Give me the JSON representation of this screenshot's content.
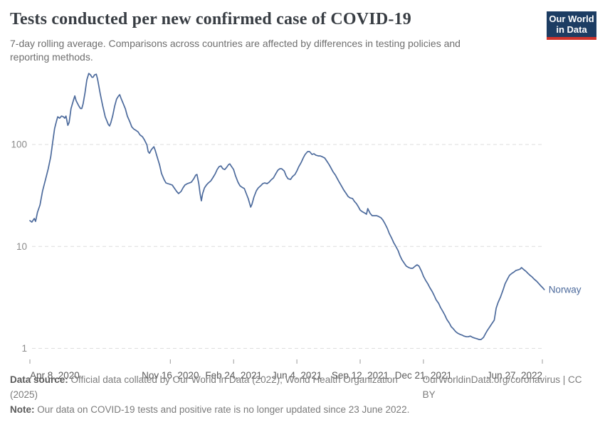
{
  "header": {
    "title": "Tests conducted per new confirmed case of COVID-19",
    "subtitle": "7-day rolling average. Comparisons across countries are affected by differences in testing policies and reporting methods.",
    "logo": {
      "line1": "Our World",
      "line2": "in Data"
    }
  },
  "footer": {
    "source_label": "Data source:",
    "source_text": " Official data collated by Our World in Data (2022); World Health Organization (2025)",
    "link_text": "OurWorldinData.org/coronavirus | CC BY",
    "note_label": "Note:",
    "note_text": " Our data on COVID-19 tests and positive rate is no longer updated since 23 June 2022."
  },
  "colors": {
    "line": "#4C6A9C",
    "series_label": "#4C6A9C",
    "grid": "#dedede",
    "y_tick_text": "#8b8b8b",
    "x_tick_text": "#5b5b5b",
    "tick_mark": "#999999",
    "logo_bg": "#1d3d63",
    "logo_red": "#d0342c"
  },
  "chart_data": {
    "type": "line",
    "title": "Tests conducted per new confirmed case of COVID-19",
    "xlabel": "",
    "ylabel": "",
    "log_scale_y": true,
    "ylim": [
      1,
      500
    ],
    "grid": "dashed-horizontal",
    "legend_position": "end-of-line-label",
    "start_date": "2020-04-08",
    "y_ticks": [
      {
        "value": 1,
        "label": "1"
      },
      {
        "value": 10,
        "label": "10"
      },
      {
        "value": 100,
        "label": "100"
      }
    ],
    "x_ticks": [
      {
        "day": 0,
        "label": "Apr 8, 2020",
        "align": "start"
      },
      {
        "day": 222,
        "label": "Nov 16, 2020",
        "align": "middle"
      },
      {
        "day": 322,
        "label": "Feb 24, 2021",
        "align": "middle"
      },
      {
        "day": 422,
        "label": "Jun 4, 2021",
        "align": "middle"
      },
      {
        "day": 522,
        "label": "Sep 12, 2021",
        "align": "middle"
      },
      {
        "day": 622,
        "label": "Dec 21, 2021",
        "align": "middle"
      },
      {
        "day": 810,
        "label": "Jun 27, 2022",
        "align": "end"
      }
    ],
    "series": [
      {
        "name": "Norway",
        "color": "#4C6A9C",
        "points_format": "[days_since_start_date, tests_per_confirmed_case]",
        "points": [
          [
            0,
            17.9
          ],
          [
            3,
            17.3
          ],
          [
            7,
            18.8
          ],
          [
            9,
            17.6
          ],
          [
            12,
            21.7
          ],
          [
            16,
            25.5
          ],
          [
            20,
            35
          ],
          [
            25,
            46
          ],
          [
            29,
            58
          ],
          [
            33,
            76
          ],
          [
            36,
            105
          ],
          [
            39,
            143
          ],
          [
            42,
            169
          ],
          [
            44,
            187
          ],
          [
            47,
            181
          ],
          [
            50,
            190
          ],
          [
            53,
            187
          ],
          [
            55,
            181
          ],
          [
            57,
            190
          ],
          [
            60,
            154
          ],
          [
            62,
            164
          ],
          [
            65,
            225
          ],
          [
            69,
            273
          ],
          [
            71,
            300
          ],
          [
            73,
            269
          ],
          [
            77,
            241
          ],
          [
            80,
            225
          ],
          [
            82,
            225
          ],
          [
            84,
            249
          ],
          [
            87,
            317
          ],
          [
            90,
            430
          ],
          [
            93,
            497
          ],
          [
            96,
            481
          ],
          [
            98,
            457
          ],
          [
            100,
            457
          ],
          [
            102,
            481
          ],
          [
            105,
            489
          ],
          [
            107,
            437
          ],
          [
            109,
            373
          ],
          [
            111,
            317
          ],
          [
            115,
            241
          ],
          [
            117,
            213
          ],
          [
            119,
            187
          ],
          [
            122,
            169
          ],
          [
            124,
            157
          ],
          [
            126,
            152
          ],
          [
            128,
            164
          ],
          [
            131,
            192
          ],
          [
            134,
            238
          ],
          [
            137,
            279
          ],
          [
            140,
            298
          ],
          [
            142,
            308
          ],
          [
            144,
            284
          ],
          [
            147,
            256
          ],
          [
            151,
            223
          ],
          [
            154,
            190
          ],
          [
            158,
            167
          ],
          [
            161,
            149
          ],
          [
            164,
            142
          ],
          [
            168,
            137
          ],
          [
            171,
            133
          ],
          [
            174,
            124
          ],
          [
            178,
            119
          ],
          [
            181,
            111
          ],
          [
            185,
            99
          ],
          [
            187,
            85
          ],
          [
            189,
            82
          ],
          [
            192,
            89
          ],
          [
            196,
            95
          ],
          [
            198,
            88
          ],
          [
            201,
            76
          ],
          [
            205,
            63
          ],
          [
            208,
            52
          ],
          [
            212,
            45.5
          ],
          [
            215,
            42
          ],
          [
            218,
            41.3
          ],
          [
            222,
            40.6
          ],
          [
            225,
            40
          ],
          [
            228,
            37.5
          ],
          [
            232,
            34.6
          ],
          [
            235,
            33
          ],
          [
            239,
            34.6
          ],
          [
            242,
            37.5
          ],
          [
            245,
            40
          ],
          [
            249,
            41.3
          ],
          [
            252,
            41.9
          ],
          [
            255,
            42.6
          ],
          [
            259,
            46
          ],
          [
            262,
            50
          ],
          [
            264,
            50.8
          ],
          [
            267,
            41.3
          ],
          [
            269,
            33
          ],
          [
            271,
            28
          ],
          [
            273,
            33
          ],
          [
            276,
            37.5
          ],
          [
            279,
            40
          ],
          [
            282,
            41.9
          ],
          [
            286,
            44
          ],
          [
            289,
            47
          ],
          [
            293,
            51.6
          ],
          [
            296,
            56.8
          ],
          [
            299,
            60.6
          ],
          [
            302,
            61.6
          ],
          [
            305,
            57.8
          ],
          [
            308,
            56.8
          ],
          [
            311,
            59.6
          ],
          [
            314,
            63.5
          ],
          [
            316,
            64.5
          ],
          [
            318,
            61.6
          ],
          [
            322,
            56.8
          ],
          [
            325,
            49.2
          ],
          [
            329,
            42.6
          ],
          [
            332,
            39.4
          ],
          [
            335,
            38.1
          ],
          [
            339,
            36.9
          ],
          [
            342,
            33
          ],
          [
            345,
            29.5
          ],
          [
            349,
            24.3
          ],
          [
            351,
            25.9
          ],
          [
            354,
            30.4
          ],
          [
            358,
            35.2
          ],
          [
            361,
            37.5
          ],
          [
            365,
            39.4
          ],
          [
            368,
            41.3
          ],
          [
            371,
            41.9
          ],
          [
            375,
            41.3
          ],
          [
            378,
            42.6
          ],
          [
            381,
            44.8
          ],
          [
            385,
            47
          ],
          [
            388,
            50.8
          ],
          [
            392,
            55.9
          ],
          [
            395,
            57.8
          ],
          [
            398,
            57.8
          ],
          [
            402,
            55
          ],
          [
            405,
            49.2
          ],
          [
            408,
            46.1
          ],
          [
            412,
            45.4
          ],
          [
            415,
            48.4
          ],
          [
            419,
            50.8
          ],
          [
            422,
            55
          ],
          [
            425,
            60.6
          ],
          [
            429,
            66.9
          ],
          [
            432,
            73.7
          ],
          [
            435,
            79.8
          ],
          [
            439,
            85.1
          ],
          [
            442,
            85.1
          ],
          [
            446,
            79.8
          ],
          [
            449,
            81.1
          ],
          [
            452,
            78.5
          ],
          [
            456,
            77.2
          ],
          [
            459,
            77.2
          ],
          [
            462,
            75.9
          ],
          [
            466,
            73.7
          ],
          [
            469,
            69.1
          ],
          [
            473,
            63.5
          ],
          [
            476,
            58.6
          ],
          [
            479,
            54.1
          ],
          [
            483,
            50
          ],
          [
            486,
            46.1
          ],
          [
            489,
            42.6
          ],
          [
            493,
            38.7
          ],
          [
            496,
            35.8
          ],
          [
            500,
            33
          ],
          [
            503,
            30.9
          ],
          [
            506,
            29.9
          ],
          [
            510,
            29.5
          ],
          [
            513,
            27.6
          ],
          [
            516,
            26.3
          ],
          [
            519,
            24.6
          ],
          [
            522,
            22.7
          ],
          [
            525,
            22
          ],
          [
            529,
            21.3
          ],
          [
            532,
            20.7
          ],
          [
            534,
            23.5
          ],
          [
            538,
            21
          ],
          [
            541,
            20
          ],
          [
            545,
            20
          ],
          [
            548,
            20
          ],
          [
            551,
            19.7
          ],
          [
            555,
            19.1
          ],
          [
            558,
            18.1
          ],
          [
            561,
            16.8
          ],
          [
            565,
            15
          ],
          [
            568,
            13.4
          ],
          [
            572,
            12
          ],
          [
            575,
            10.9
          ],
          [
            578,
            10.1
          ],
          [
            582,
            9.1
          ],
          [
            585,
            8.1
          ],
          [
            588,
            7.4
          ],
          [
            592,
            6.8
          ],
          [
            595,
            6.4
          ],
          [
            599,
            6.2
          ],
          [
            602,
            6.1
          ],
          [
            605,
            6.1
          ],
          [
            609,
            6.4
          ],
          [
            612,
            6.6
          ],
          [
            615,
            6.4
          ],
          [
            619,
            5.7
          ],
          [
            622,
            5.1
          ],
          [
            626,
            4.6
          ],
          [
            629,
            4.3
          ],
          [
            632,
            3.95
          ],
          [
            636,
            3.6
          ],
          [
            639,
            3.3
          ],
          [
            642,
            3.0
          ],
          [
            646,
            2.77
          ],
          [
            649,
            2.52
          ],
          [
            653,
            2.29
          ],
          [
            656,
            2.11
          ],
          [
            659,
            1.92
          ],
          [
            663,
            1.77
          ],
          [
            666,
            1.63
          ],
          [
            669,
            1.56
          ],
          [
            673,
            1.46
          ],
          [
            676,
            1.41
          ],
          [
            680,
            1.37
          ],
          [
            683,
            1.35
          ],
          [
            686,
            1.32
          ],
          [
            690,
            1.3
          ],
          [
            693,
            1.3
          ],
          [
            696,
            1.32
          ],
          [
            700,
            1.28
          ],
          [
            703,
            1.26
          ],
          [
            707,
            1.24
          ],
          [
            710,
            1.22
          ],
          [
            713,
            1.22
          ],
          [
            717,
            1.28
          ],
          [
            720,
            1.39
          ],
          [
            723,
            1.5
          ],
          [
            727,
            1.63
          ],
          [
            730,
            1.74
          ],
          [
            734,
            1.89
          ],
          [
            737,
            2.48
          ],
          [
            740,
            2.82
          ],
          [
            744,
            3.2
          ],
          [
            748,
            3.76
          ],
          [
            751,
            4.3
          ],
          [
            755,
            4.8
          ],
          [
            758,
            5.2
          ],
          [
            762,
            5.45
          ],
          [
            765,
            5.6
          ],
          [
            768,
            5.8
          ],
          [
            772,
            5.9
          ],
          [
            775,
            6.0
          ],
          [
            777,
            6.2
          ],
          [
            781,
            5.9
          ],
          [
            784,
            5.7
          ],
          [
            787,
            5.45
          ],
          [
            791,
            5.18
          ],
          [
            794,
            5.0
          ],
          [
            797,
            4.78
          ],
          [
            801,
            4.55
          ],
          [
            804,
            4.34
          ],
          [
            807,
            4.14
          ],
          [
            811,
            3.9
          ],
          [
            813,
            3.77
          ]
        ]
      }
    ]
  }
}
